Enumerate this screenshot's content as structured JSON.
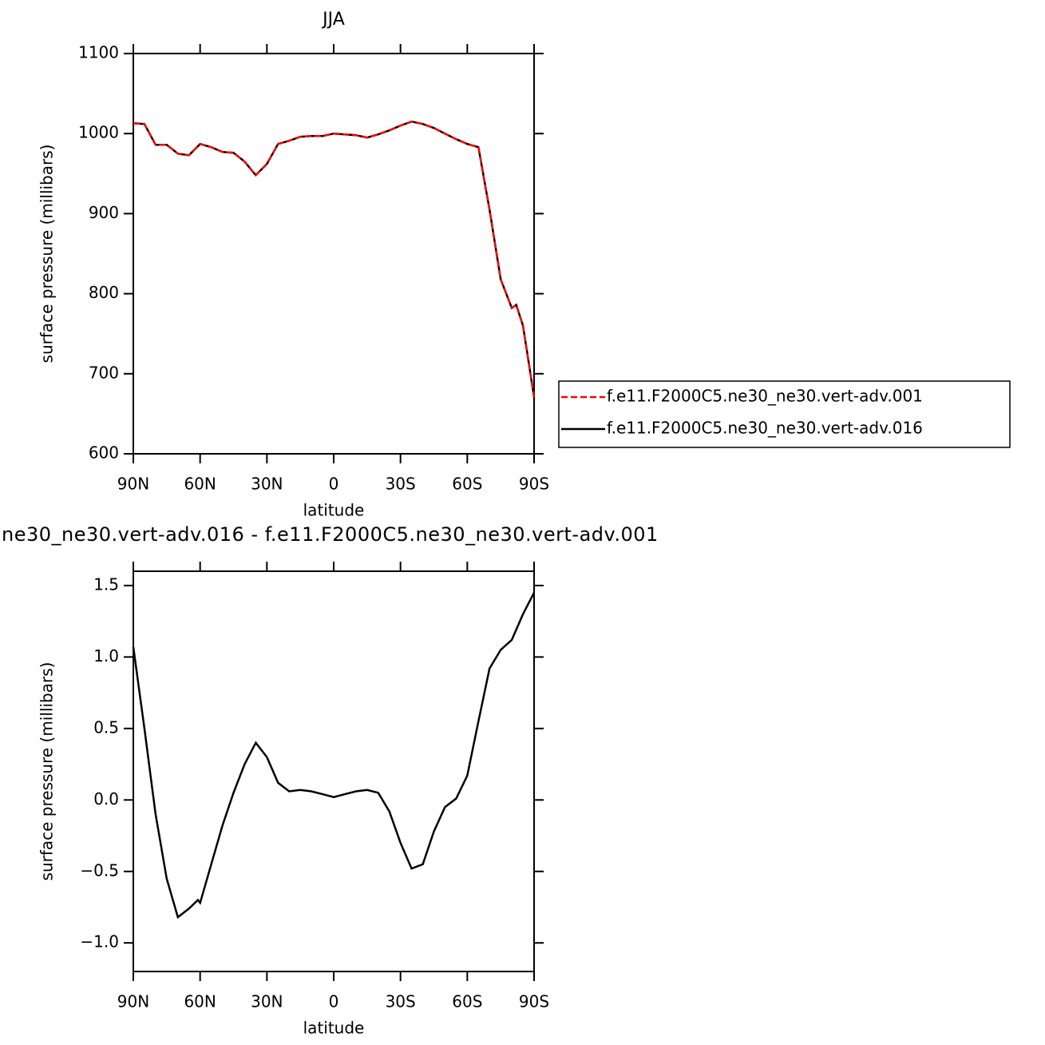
{
  "chart_data": [
    {
      "type": "line",
      "title": "JJA",
      "xlabel": "latitude",
      "ylabel": "surface pressure (millibars)",
      "x": [
        90,
        85,
        80,
        75,
        70,
        65,
        60,
        55,
        50,
        45,
        40,
        35,
        30,
        25,
        20,
        15,
        10,
        5,
        0,
        -5,
        -10,
        -15,
        -20,
        -25,
        -30,
        -35,
        -40,
        -45,
        -50,
        -55,
        -60,
        -65,
        -70,
        -75,
        -80,
        -82,
        -85,
        -90
      ],
      "series": [
        {
          "name": "f.e11.F2000C5.ne30_ne30.vert-adv.001",
          "color": "#ff0000",
          "dash": true,
          "values": [
            1013,
            1012,
            986,
            986,
            975,
            973,
            987,
            983,
            977,
            976,
            965,
            948,
            962,
            987,
            991,
            996,
            997,
            997,
            1000,
            999,
            998,
            995,
            999,
            1004,
            1010,
            1015,
            1012,
            1007,
            1000,
            993,
            987,
            983,
            905,
            818,
            782,
            786,
            760,
            671
          ]
        },
        {
          "name": "f.e11.F2000C5.ne30_ne30.vert-adv.016",
          "color": "#000000",
          "dash": false,
          "values": [
            1013,
            1012,
            986,
            986,
            975,
            973,
            987,
            983,
            977,
            976,
            965,
            948,
            962,
            987,
            991,
            996,
            997,
            997,
            1000,
            999,
            998,
            995,
            999,
            1004,
            1010,
            1015,
            1012,
            1007,
            1000,
            993,
            987,
            983,
            905,
            818,
            782,
            786,
            760,
            671
          ]
        }
      ],
      "xlim": [
        90,
        -90
      ],
      "xticks": [
        {
          "value": 90,
          "label": "90N"
        },
        {
          "value": 60,
          "label": "60N"
        },
        {
          "value": 30,
          "label": "30N"
        },
        0,
        {
          "value": -30,
          "label": "30S"
        },
        {
          "value": -60,
          "label": "60S"
        },
        {
          "value": -90,
          "label": "90S"
        }
      ],
      "ylim": [
        600,
        1100
      ],
      "yticks": [
        600,
        700,
        800,
        900,
        1000,
        1100
      ],
      "legend": "right"
    },
    {
      "type": "line",
      "title": "ne30_ne30.vert-adv.016 - f.e11.F2000C5.ne30_ne30.vert-adv.001",
      "xlabel": "latitude",
      "ylabel": "surface pressure (millibars)",
      "x": [
        90,
        85,
        80,
        75,
        70,
        65,
        61,
        60,
        55,
        50,
        45,
        40,
        35,
        30,
        25,
        20,
        15,
        10,
        5,
        0,
        -5,
        -10,
        -15,
        -20,
        -25,
        -30,
        -35,
        -40,
        -45,
        -50,
        -55,
        -60,
        -65,
        -70,
        -75,
        -80,
        -85,
        -90
      ],
      "values": [
        1.07,
        0.5,
        -0.1,
        -0.55,
        -0.82,
        -0.76,
        -0.7,
        -0.72,
        -0.45,
        -0.18,
        0.05,
        0.25,
        0.4,
        0.3,
        0.12,
        0.06,
        0.07,
        0.06,
        0.04,
        0.02,
        0.04,
        0.06,
        0.07,
        0.05,
        -0.08,
        -0.3,
        -0.48,
        -0.45,
        -0.22,
        -0.05,
        0.01,
        0.17,
        0.55,
        0.92,
        1.05,
        1.12,
        1.3,
        1.45
      ],
      "color": "#000000",
      "xlim": [
        90,
        -90
      ],
      "xticks": [
        {
          "value": 90,
          "label": "90N"
        },
        {
          "value": 60,
          "label": "60N"
        },
        {
          "value": 30,
          "label": "30N"
        },
        0,
        {
          "value": -30,
          "label": "30S"
        },
        {
          "value": -60,
          "label": "60S"
        },
        {
          "value": -90,
          "label": "90S"
        }
      ],
      "ylim": [
        -1.2,
        1.6
      ],
      "yticks": [
        {
          "value": -1.0,
          "label": "−1.0"
        },
        {
          "value": -0.5,
          "label": "−0.5"
        },
        {
          "value": 0,
          "label": "0.0"
        },
        0.5,
        {
          "value": 1.0,
          "label": "1.0"
        },
        1.5
      ]
    }
  ]
}
